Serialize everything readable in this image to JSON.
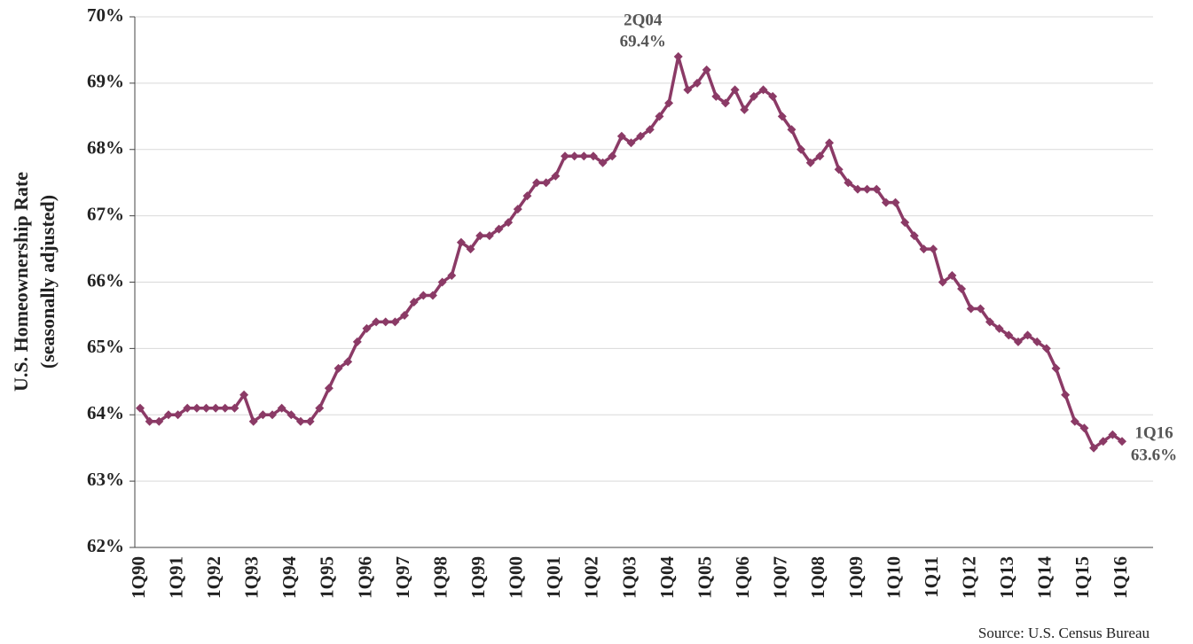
{
  "chart_data": {
    "type": "line",
    "y_label": [
      "U.S. Homeownership Rate",
      "(seasonally adjusted)"
    ],
    "source": "Source:  U.S. Census Bureau",
    "annotations": [
      {
        "category": "2Q04",
        "label": "69.4%",
        "index": 57
      },
      {
        "category": "1Q16",
        "label": "63.6%",
        "index": 104
      }
    ],
    "categories": [
      "1Q90",
      null,
      null,
      null,
      "1Q91",
      null,
      null,
      null,
      "1Q92",
      null,
      null,
      null,
      "1Q93",
      null,
      null,
      null,
      "1Q94",
      null,
      null,
      null,
      "1Q95",
      null,
      null,
      null,
      "1Q96",
      null,
      null,
      null,
      "1Q97",
      null,
      null,
      null,
      "1Q98",
      null,
      null,
      null,
      "1Q99",
      null,
      null,
      null,
      "1Q00",
      null,
      null,
      null,
      "1Q01",
      null,
      null,
      null,
      "1Q02",
      null,
      null,
      null,
      "1Q03",
      null,
      null,
      null,
      "1Q04",
      null,
      null,
      null,
      "1Q05",
      null,
      null,
      null,
      "1Q06",
      null,
      null,
      null,
      "1Q07",
      null,
      null,
      null,
      "1Q08",
      null,
      null,
      null,
      "1Q09",
      null,
      null,
      null,
      "1Q10",
      null,
      null,
      null,
      "1Q11",
      null,
      null,
      null,
      "1Q12",
      null,
      null,
      null,
      "1Q13",
      null,
      null,
      null,
      "1Q14",
      null,
      null,
      null,
      "1Q15",
      null,
      null,
      null,
      "1Q16"
    ],
    "series": [
      {
        "name": "Homeownership Rate",
        "color": "#8b3a66",
        "values": [
          64.1,
          63.9,
          63.9,
          64.0,
          64.0,
          64.1,
          64.1,
          64.1,
          64.1,
          64.1,
          64.1,
          64.3,
          63.9,
          64.0,
          64.0,
          64.1,
          64.0,
          63.9,
          63.9,
          64.1,
          64.4,
          64.7,
          64.8,
          65.1,
          65.3,
          65.4,
          65.4,
          65.4,
          65.5,
          65.7,
          65.8,
          65.8,
          66.0,
          66.1,
          66.6,
          66.5,
          66.7,
          66.7,
          66.8,
          66.9,
          67.1,
          67.3,
          67.5,
          67.5,
          67.6,
          67.9,
          67.9,
          67.9,
          67.9,
          67.8,
          67.9,
          68.2,
          68.1,
          68.2,
          68.3,
          68.5,
          68.7,
          69.4,
          68.9,
          69.0,
          69.2,
          68.8,
          68.7,
          68.9,
          68.6,
          68.8,
          68.9,
          68.8,
          68.5,
          68.3,
          68.0,
          67.8,
          67.9,
          68.1,
          67.7,
          67.5,
          67.4,
          67.4,
          67.4,
          67.2,
          67.2,
          66.9,
          66.7,
          66.5,
          66.5,
          66.0,
          66.1,
          65.9,
          65.6,
          65.6,
          65.4,
          65.3,
          65.2,
          65.1,
          65.2,
          65.1,
          65.0,
          64.7,
          64.3,
          63.9,
          63.8,
          63.5,
          63.6,
          63.7,
          63.6
        ]
      }
    ],
    "ylim": [
      62,
      70
    ],
    "yticks": [
      {
        "value": 62,
        "label": "62%"
      },
      {
        "value": 63,
        "label": "63%"
      },
      {
        "value": 64,
        "label": "64%"
      },
      {
        "value": 65,
        "label": "65%"
      },
      {
        "value": 66,
        "label": "66%"
      },
      {
        "value": 67,
        "label": "67%"
      },
      {
        "value": 68,
        "label": "68%"
      },
      {
        "value": 69,
        "label": "69%"
      },
      {
        "value": 70,
        "label": "70%"
      }
    ],
    "grid": true
  }
}
